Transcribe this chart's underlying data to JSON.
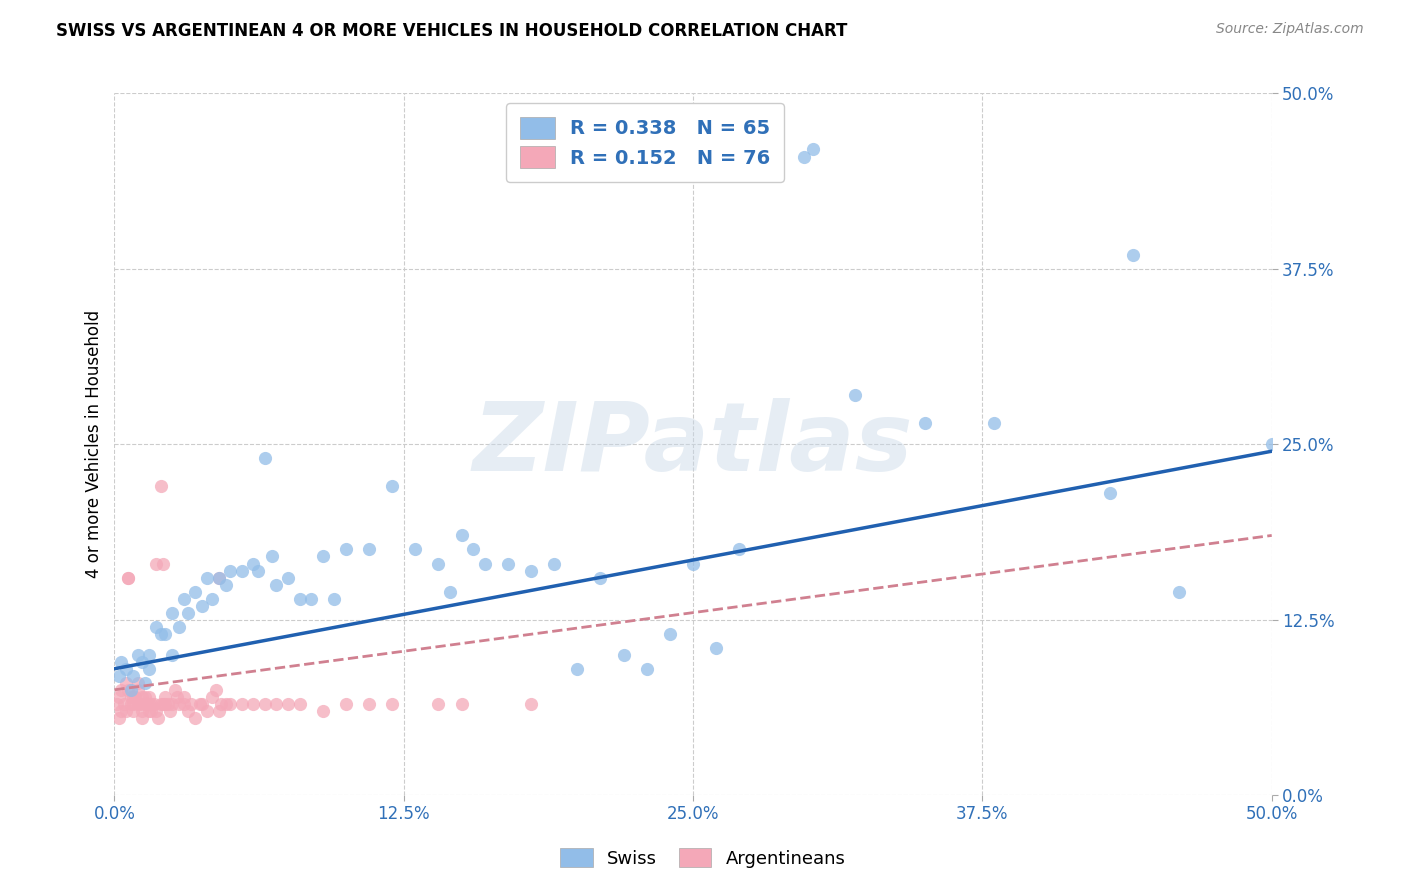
{
  "title": "SWISS VS ARGENTINEAN 4 OR MORE VEHICLES IN HOUSEHOLD CORRELATION CHART",
  "source": "Source: ZipAtlas.com",
  "ylabel": "4 or more Vehicles in Household",
  "xlim": [
    0.0,
    0.5
  ],
  "ylim": [
    0.0,
    0.5
  ],
  "swiss_R": "0.338",
  "swiss_N": "65",
  "arg_R": "0.152",
  "arg_N": "76",
  "swiss_color": "#92bde8",
  "arg_color": "#f4a8b8",
  "swiss_line_color": "#2060b0",
  "arg_line_color": "#d08090",
  "watermark": "ZIPatlas",
  "legend_label_swiss": "Swiss",
  "legend_label_arg": "Argentineans",
  "xtick_vals": [
    0.0,
    0.125,
    0.25,
    0.375,
    0.5
  ],
  "ytick_vals": [
    0.0,
    0.125,
    0.25,
    0.375,
    0.5
  ],
  "xtick_labels": [
    "0.0%",
    "12.5%",
    "25.0%",
    "37.5%",
    "50.0%"
  ],
  "ytick_labels": [
    "0.0%",
    "12.5%",
    "25.0%",
    "37.5%",
    "50.0%"
  ],
  "swiss_line_x": [
    0.0,
    0.5
  ],
  "swiss_line_y": [
    0.09,
    0.245
  ],
  "arg_line_x": [
    0.0,
    0.5
  ],
  "arg_line_y": [
    0.075,
    0.185
  ],
  "swiss_scatter": [
    [
      0.002,
      0.085
    ],
    [
      0.003,
      0.095
    ],
    [
      0.005,
      0.09
    ],
    [
      0.007,
      0.075
    ],
    [
      0.008,
      0.085
    ],
    [
      0.01,
      0.1
    ],
    [
      0.012,
      0.095
    ],
    [
      0.013,
      0.08
    ],
    [
      0.015,
      0.1
    ],
    [
      0.015,
      0.09
    ],
    [
      0.018,
      0.12
    ],
    [
      0.02,
      0.115
    ],
    [
      0.022,
      0.115
    ],
    [
      0.025,
      0.13
    ],
    [
      0.025,
      0.1
    ],
    [
      0.028,
      0.12
    ],
    [
      0.03,
      0.14
    ],
    [
      0.032,
      0.13
    ],
    [
      0.035,
      0.145
    ],
    [
      0.038,
      0.135
    ],
    [
      0.04,
      0.155
    ],
    [
      0.042,
      0.14
    ],
    [
      0.045,
      0.155
    ],
    [
      0.048,
      0.15
    ],
    [
      0.05,
      0.16
    ],
    [
      0.055,
      0.16
    ],
    [
      0.06,
      0.165
    ],
    [
      0.062,
      0.16
    ],
    [
      0.065,
      0.24
    ],
    [
      0.068,
      0.17
    ],
    [
      0.07,
      0.15
    ],
    [
      0.075,
      0.155
    ],
    [
      0.08,
      0.14
    ],
    [
      0.085,
      0.14
    ],
    [
      0.09,
      0.17
    ],
    [
      0.095,
      0.14
    ],
    [
      0.1,
      0.175
    ],
    [
      0.11,
      0.175
    ],
    [
      0.12,
      0.22
    ],
    [
      0.13,
      0.175
    ],
    [
      0.14,
      0.165
    ],
    [
      0.145,
      0.145
    ],
    [
      0.15,
      0.185
    ],
    [
      0.155,
      0.175
    ],
    [
      0.16,
      0.165
    ],
    [
      0.17,
      0.165
    ],
    [
      0.18,
      0.16
    ],
    [
      0.19,
      0.165
    ],
    [
      0.2,
      0.09
    ],
    [
      0.21,
      0.155
    ],
    [
      0.22,
      0.1
    ],
    [
      0.23,
      0.09
    ],
    [
      0.24,
      0.115
    ],
    [
      0.25,
      0.165
    ],
    [
      0.26,
      0.105
    ],
    [
      0.27,
      0.175
    ],
    [
      0.298,
      0.455
    ],
    [
      0.302,
      0.46
    ],
    [
      0.32,
      0.285
    ],
    [
      0.35,
      0.265
    ],
    [
      0.38,
      0.265
    ],
    [
      0.43,
      0.215
    ],
    [
      0.44,
      0.385
    ],
    [
      0.46,
      0.145
    ],
    [
      0.5,
      0.25
    ]
  ],
  "arg_scatter": [
    [
      0.001,
      0.065
    ],
    [
      0.002,
      0.07
    ],
    [
      0.002,
      0.055
    ],
    [
      0.003,
      0.06
    ],
    [
      0.003,
      0.075
    ],
    [
      0.004,
      0.065
    ],
    [
      0.005,
      0.06
    ],
    [
      0.005,
      0.08
    ],
    [
      0.006,
      0.155
    ],
    [
      0.006,
      0.155
    ],
    [
      0.006,
      0.075
    ],
    [
      0.007,
      0.065
    ],
    [
      0.007,
      0.07
    ],
    [
      0.008,
      0.065
    ],
    [
      0.008,
      0.06
    ],
    [
      0.008,
      0.07
    ],
    [
      0.009,
      0.07
    ],
    [
      0.01,
      0.065
    ],
    [
      0.01,
      0.08
    ],
    [
      0.01,
      0.075
    ],
    [
      0.011,
      0.065
    ],
    [
      0.012,
      0.07
    ],
    [
      0.012,
      0.06
    ],
    [
      0.012,
      0.055
    ],
    [
      0.013,
      0.07
    ],
    [
      0.013,
      0.065
    ],
    [
      0.014,
      0.065
    ],
    [
      0.015,
      0.06
    ],
    [
      0.015,
      0.07
    ],
    [
      0.015,
      0.065
    ],
    [
      0.016,
      0.065
    ],
    [
      0.016,
      0.06
    ],
    [
      0.017,
      0.065
    ],
    [
      0.018,
      0.165
    ],
    [
      0.018,
      0.06
    ],
    [
      0.019,
      0.055
    ],
    [
      0.02,
      0.22
    ],
    [
      0.02,
      0.065
    ],
    [
      0.021,
      0.065
    ],
    [
      0.021,
      0.165
    ],
    [
      0.022,
      0.07
    ],
    [
      0.022,
      0.065
    ],
    [
      0.023,
      0.065
    ],
    [
      0.024,
      0.06
    ],
    [
      0.025,
      0.065
    ],
    [
      0.026,
      0.075
    ],
    [
      0.027,
      0.07
    ],
    [
      0.028,
      0.065
    ],
    [
      0.03,
      0.065
    ],
    [
      0.03,
      0.07
    ],
    [
      0.032,
      0.06
    ],
    [
      0.033,
      0.065
    ],
    [
      0.035,
      0.055
    ],
    [
      0.037,
      0.065
    ],
    [
      0.038,
      0.065
    ],
    [
      0.04,
      0.06
    ],
    [
      0.042,
      0.07
    ],
    [
      0.044,
      0.075
    ],
    [
      0.045,
      0.155
    ],
    [
      0.045,
      0.06
    ],
    [
      0.046,
      0.065
    ],
    [
      0.048,
      0.065
    ],
    [
      0.05,
      0.065
    ],
    [
      0.055,
      0.065
    ],
    [
      0.06,
      0.065
    ],
    [
      0.065,
      0.065
    ],
    [
      0.07,
      0.065
    ],
    [
      0.075,
      0.065
    ],
    [
      0.08,
      0.065
    ],
    [
      0.09,
      0.06
    ],
    [
      0.1,
      0.065
    ],
    [
      0.11,
      0.065
    ],
    [
      0.12,
      0.065
    ],
    [
      0.14,
      0.065
    ],
    [
      0.15,
      0.065
    ],
    [
      0.18,
      0.065
    ]
  ]
}
